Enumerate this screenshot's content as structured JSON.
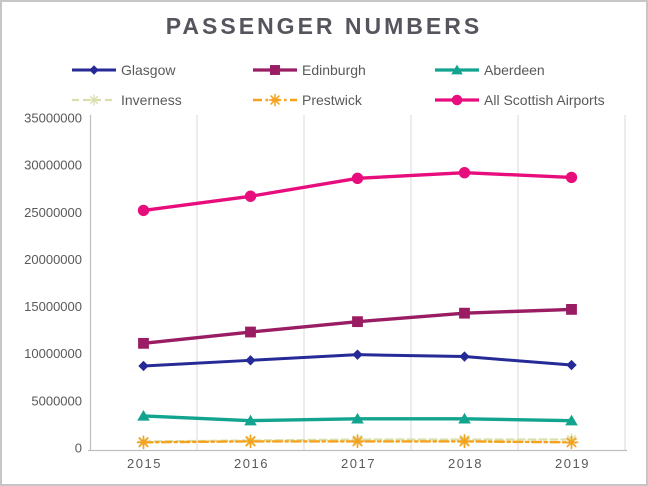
{
  "chart_data": {
    "type": "line",
    "title": "PASSENGER NUMBERS",
    "categories": [
      "2015",
      "2016",
      "2017",
      "2018",
      "2019"
    ],
    "xlabel": "",
    "ylabel": "",
    "ylim": [
      0,
      35000000
    ],
    "ytick_step": 5000000,
    "ytick_labels": [
      "0",
      "5000000",
      "10000000",
      "15000000",
      "20000000",
      "25000000",
      "30000000",
      "35000000"
    ],
    "grid": "vertical-only",
    "legend_position": "top",
    "series": [
      {
        "name": "Glasgow",
        "color": "#252A96",
        "marker": "diamond",
        "line_style": "solid",
        "values": [
          8700000,
          9300000,
          9900000,
          9700000,
          8800000
        ]
      },
      {
        "name": "Edinburgh",
        "color": "#9A1D63",
        "marker": "square",
        "line_style": "solid",
        "values": [
          11100000,
          12300000,
          13400000,
          14300000,
          14700000
        ]
      },
      {
        "name": "Aberdeen",
        "color": "#12A48F",
        "marker": "triangle",
        "line_style": "solid",
        "values": [
          3400000,
          2900000,
          3100000,
          3100000,
          2900000
        ]
      },
      {
        "name": "Inverness",
        "color": "#DBDFAE",
        "marker": "star",
        "line_style": "dashed",
        "values": [
          700000,
          800000,
          900000,
          900000,
          900000
        ]
      },
      {
        "name": "Prestwick",
        "color": "#F5A31E",
        "marker": "asterisk",
        "line_style": "dash-dot",
        "values": [
          600000,
          700000,
          700000,
          700000,
          600000
        ]
      },
      {
        "name": "All Scottish Airports",
        "color": "#E80D7D",
        "marker": "circle",
        "line_style": "solid",
        "values": [
          25200000,
          26700000,
          28600000,
          29200000,
          28700000
        ]
      }
    ]
  },
  "colors": {
    "title_text": "#54555D",
    "axis_text": "#595959",
    "gridline": "#D9D9D9",
    "axis_line": "#BFBFBF",
    "frame_border": "#C6C6C6",
    "background": "#FFFFFF"
  }
}
